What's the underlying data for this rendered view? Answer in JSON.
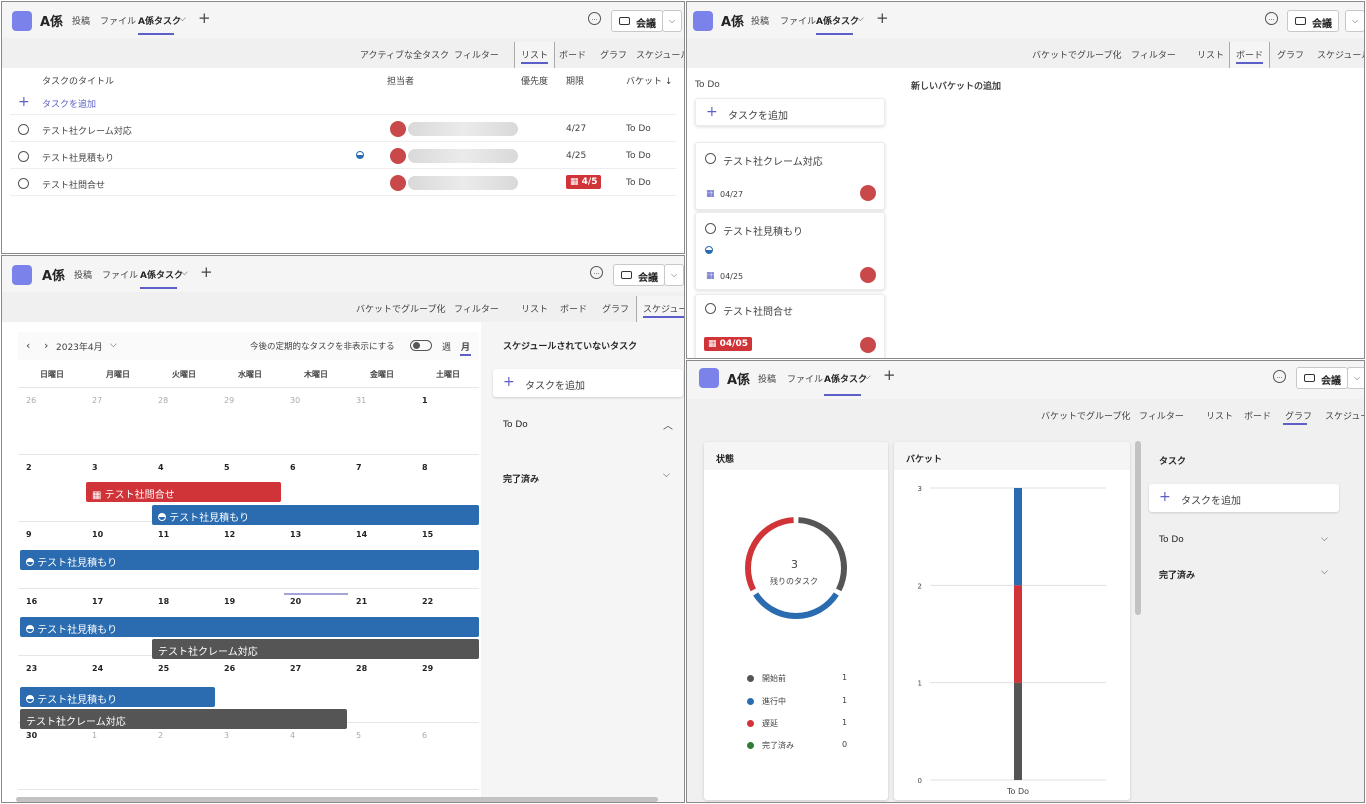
{
  "header": {
    "team": "A係",
    "tab_posts": "投稿",
    "tab_files": "ファイル",
    "tab_tasks": "A係タスク",
    "tab_tasks_chevron": "⌵",
    "add_tab": "+",
    "meet": "会議",
    "meet_chevron": "⌵"
  },
  "toolbar": {
    "active_tasks": "アクティブな全タスク",
    "group_by_bucket": "バケットでグループ化",
    "filter": "フィルター",
    "list": "リスト",
    "board": "ボード",
    "chart": "グラフ",
    "schedule": "スケジュール"
  },
  "list_view": {
    "columns": {
      "title": "タスクのタイトル",
      "assignee": "担当者",
      "priority": "優先度",
      "due": "期限",
      "bucket": "バケット ↓"
    },
    "add_task": "タスクを追加",
    "rows": [
      {
        "title": "テスト社クレーム対応",
        "due": "4/27",
        "bucket": "To Do"
      },
      {
        "title": "テスト社見積もり",
        "due": "4/25",
        "bucket": "To Do"
      },
      {
        "title": "テスト社問合せ",
        "due": "4/5",
        "bucket": "To Do"
      }
    ]
  },
  "board_view": {
    "bucket": "To Do",
    "new_bucket": "新しいバケットの追加",
    "add_task": "タスクを追加",
    "cards": [
      {
        "title": "テスト社クレーム対応",
        "due": "04/27"
      },
      {
        "title": "テスト社見積もり",
        "due": "04/25"
      },
      {
        "title": "テスト社問合せ",
        "due": "04/05"
      }
    ]
  },
  "schedule_view": {
    "month": "2023年4月",
    "hide_recurring": "今後の定期的なタスクを非表示にする",
    "week": "週",
    "month_toggle": "月",
    "weekdays": [
      "日曜日",
      "月曜日",
      "火曜日",
      "水曜日",
      "木曜日",
      "金曜日",
      "土曜日"
    ],
    "weeks": [
      [
        "26",
        "27",
        "28",
        "29",
        "30",
        "31",
        "1"
      ],
      [
        "2",
        "3",
        "4",
        "5",
        "6",
        "7",
        "8"
      ],
      [
        "9",
        "10",
        "11",
        "12",
        "13",
        "14",
        "15"
      ],
      [
        "16",
        "17",
        "18",
        "19",
        "20",
        "21",
        "22"
      ],
      [
        "23",
        "24",
        "25",
        "26",
        "27",
        "28",
        "29"
      ],
      [
        "30",
        "1",
        "2",
        "3",
        "4",
        "5",
        "6"
      ]
    ],
    "bars": {
      "inquiry": "テスト社問合せ",
      "estimate": "テスト社見積もり",
      "claim": "テスト社クレーム対応"
    },
    "unscheduled_title": "スケジュールされていないタスク",
    "add_task": "タスクを追加",
    "todo": "To Do",
    "done": "完了済み"
  },
  "chart_view": {
    "status_title": "状態",
    "bucket_title": "バケット",
    "tasks_title": "タスク",
    "remaining_count": "3",
    "remaining_label": "残りのタスク",
    "add_task": "タスクを追加",
    "todo": "To Do",
    "done": "完了済み",
    "legend": [
      {
        "label": "開始前",
        "value": "1",
        "color": "#555555"
      },
      {
        "label": "進行中",
        "value": "1",
        "color": "#2b6cb0"
      },
      {
        "label": "遅延",
        "value": "1",
        "color": "#d13438"
      },
      {
        "label": "完了済み",
        "value": "0",
        "color": "#2e7d32"
      }
    ]
  },
  "chart_data": [
    {
      "type": "pie",
      "title": "状態",
      "categories": [
        "開始前",
        "進行中",
        "遅延",
        "完了済み"
      ],
      "values": [
        1,
        1,
        1,
        0
      ],
      "colors": [
        "#555555",
        "#2b6cb0",
        "#d13438",
        "#2e7d32"
      ]
    },
    {
      "type": "bar",
      "title": "バケット",
      "categories": [
        "To Do"
      ],
      "stacked": true,
      "series": [
        {
          "name": "開始前",
          "values": [
            1
          ],
          "color": "#555555"
        },
        {
          "name": "遅延",
          "values": [
            1
          ],
          "color": "#d13438"
        },
        {
          "name": "進行中",
          "values": [
            1
          ],
          "color": "#2b6cb0"
        }
      ],
      "ylim": [
        0,
        3
      ],
      "yticks": [
        "0",
        "1",
        "2",
        "3"
      ]
    }
  ]
}
